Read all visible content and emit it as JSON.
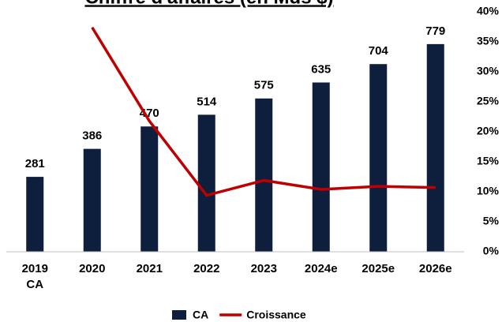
{
  "chart_data": {
    "type": "bar_line",
    "title": "Chiffre d'affaires (en Mds $)",
    "categories": [
      "2019 CA",
      "2020",
      "2021",
      "2022",
      "2023",
      "2024e",
      "2025e",
      "2026e"
    ],
    "series": [
      {
        "name": "CA",
        "type": "bar",
        "color": "#0d1f3c",
        "values": [
          281,
          386,
          470,
          514,
          575,
          635,
          704,
          779
        ]
      },
      {
        "name": "Croissance",
        "type": "line",
        "axis": "y2",
        "color": "#c00000",
        "values": [
          null,
          37.4,
          21.8,
          9.4,
          11.9,
          10.4,
          10.9,
          10.7
        ]
      }
    ],
    "ylim": [
      0,
      900
    ],
    "y2lim": [
      0,
      40
    ],
    "y2ticks": [
      {
        "value": 0,
        "label": "0%"
      },
      {
        "value": 5,
        "label": "5%"
      },
      {
        "value": 10,
        "label": "10%"
      },
      {
        "value": 15,
        "label": "15%"
      },
      {
        "value": 20,
        "label": "20%"
      },
      {
        "value": 25,
        "label": "25%"
      },
      {
        "value": 30,
        "label": "30%"
      },
      {
        "value": 35,
        "label": "35%"
      },
      {
        "value": 40,
        "label": "40%"
      }
    ],
    "legend": "bottom"
  }
}
